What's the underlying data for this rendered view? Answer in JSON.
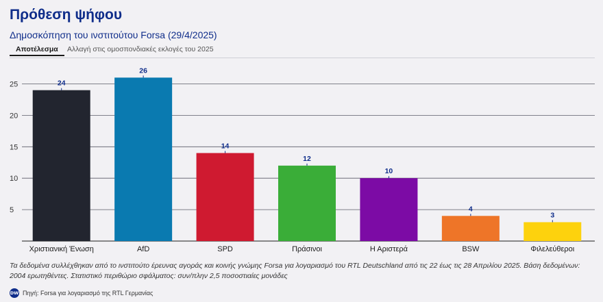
{
  "header": {
    "title": "Πρόθεση ψήφου",
    "subtitle": "Δημοσκόπηση του ινστιτούτου Forsa (29/4/2025)"
  },
  "tabs": [
    {
      "label": "Αποτέλεσμα",
      "active": true
    },
    {
      "label": "Αλλαγή στις ομοσπονδιακές εκλογές του 2025",
      "active": false
    }
  ],
  "chart_data": {
    "type": "bar",
    "title": "Πρόθεση ψήφου",
    "xlabel": "",
    "ylabel": "",
    "ylim": [
      0,
      28
    ],
    "yticks": [
      5,
      10,
      15,
      20,
      25
    ],
    "grid": true,
    "categories": [
      "Χριστιανική Ένωση",
      "AfD",
      "SPD",
      "Πράσινοι",
      "Η Αριστερά",
      "BSW",
      "Φιλελεύθεροι"
    ],
    "values": [
      24,
      26,
      14,
      12,
      10,
      4,
      3
    ],
    "colors": [
      "#22252f",
      "#0a7ab0",
      "#cf1a30",
      "#3aad38",
      "#7c0ba5",
      "#ee7528",
      "#fdd20d"
    ]
  },
  "note": "Τα δεδομένα συλλέχθηκαν από το ινστιτούτο έρευνας αγοράς και κοινής γνώμης Forsa για λογαριασμό του RTL Deutschland από τις 22 έως τις 28 Απριλίου 2025. Βάση δεδομένων: 2004 ερωτηθέντες. Στατιστικό περιθώριο σφάλματος: συν/πλην 2,5 ποσοστιαίες μονάδες",
  "footer": {
    "logo_text": "DW",
    "source": "Πηγή: Forsa για λογαριασμό της RTL Γερμανίας"
  }
}
